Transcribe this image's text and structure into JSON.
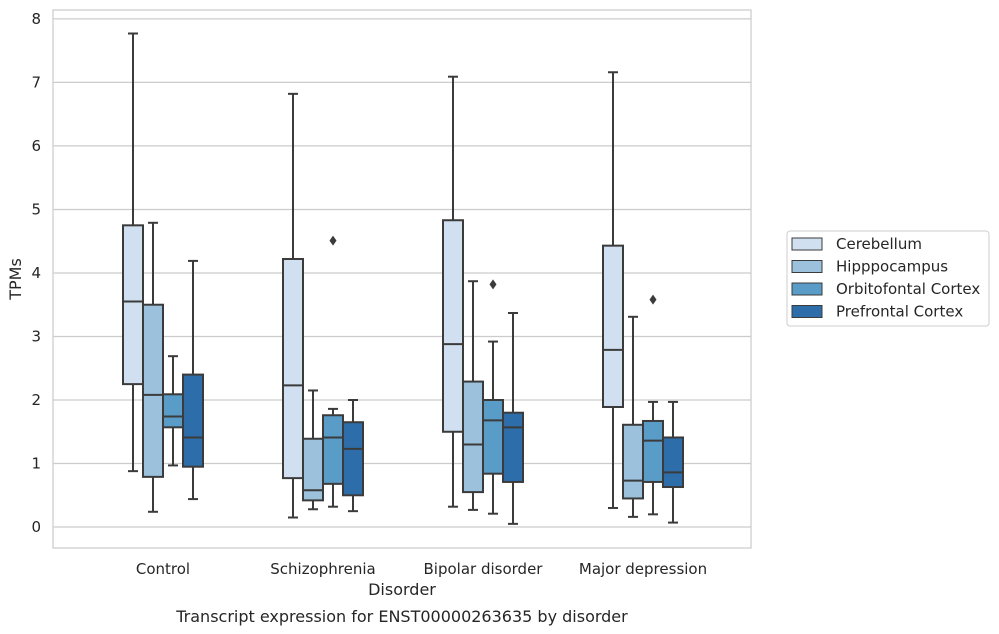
{
  "caption": "Transcript expression for ENST00000263635 by disorder",
  "chart_data": {
    "type": "boxplot",
    "xlabel": "Disorder",
    "ylabel": "TPMs",
    "ylim": [
      -0.33,
      8.14
    ],
    "yticks": [
      0,
      1,
      2,
      3,
      4,
      5,
      6,
      7,
      8
    ],
    "grid": "horizontal",
    "legend_position": "right",
    "categories": [
      "Control",
      "Schizophrenia",
      "Bipolar disorder",
      "Major depression"
    ],
    "series": [
      {
        "name": "Cerebellum",
        "color": "#d1e0f0",
        "boxes": [
          {
            "whislo": 0.88,
            "q1": 2.25,
            "med": 3.55,
            "q3": 4.75,
            "whishi": 7.77,
            "fliers": []
          },
          {
            "whislo": 0.15,
            "q1": 0.77,
            "med": 2.23,
            "q3": 4.22,
            "whishi": 6.82,
            "fliers": []
          },
          {
            "whislo": 0.32,
            "q1": 1.5,
            "med": 2.88,
            "q3": 4.83,
            "whishi": 7.09,
            "fliers": []
          },
          {
            "whislo": 0.3,
            "q1": 1.89,
            "med": 2.79,
            "q3": 4.43,
            "whishi": 7.16,
            "fliers": []
          }
        ]
      },
      {
        "name": "Hipppocampus",
        "color": "#9bc1dc",
        "boxes": [
          {
            "whislo": 0.24,
            "q1": 0.79,
            "med": 2.08,
            "q3": 3.5,
            "whishi": 4.79,
            "fliers": []
          },
          {
            "whislo": 0.28,
            "q1": 0.42,
            "med": 0.58,
            "q3": 1.39,
            "whishi": 2.15,
            "fliers": []
          },
          {
            "whislo": 0.27,
            "q1": 0.55,
            "med": 1.3,
            "q3": 2.29,
            "whishi": 3.87,
            "fliers": []
          },
          {
            "whislo": 0.16,
            "q1": 0.45,
            "med": 0.73,
            "q3": 1.61,
            "whishi": 3.31,
            "fliers": []
          }
        ]
      },
      {
        "name": "Orbitofontal Cortex",
        "color": "#5a9cc8",
        "boxes": [
          {
            "whislo": 0.97,
            "q1": 1.57,
            "med": 1.74,
            "q3": 2.09,
            "whishi": 2.69,
            "fliers": []
          },
          {
            "whislo": 0.32,
            "q1": 0.68,
            "med": 1.41,
            "q3": 1.76,
            "whishi": 1.86,
            "fliers": [
              4.51
            ]
          },
          {
            "whislo": 0.21,
            "q1": 0.84,
            "med": 1.68,
            "q3": 2.0,
            "whishi": 2.92,
            "fliers": [
              3.82
            ]
          },
          {
            "whislo": 0.2,
            "q1": 0.71,
            "med": 1.36,
            "q3": 1.67,
            "whishi": 1.97,
            "fliers": [
              3.58
            ]
          }
        ]
      },
      {
        "name": "Prefrontal Cortex",
        "color": "#2d6eaa",
        "boxes": [
          {
            "whislo": 0.44,
            "q1": 0.95,
            "med": 1.41,
            "q3": 2.4,
            "whishi": 4.19,
            "fliers": []
          },
          {
            "whislo": 0.25,
            "q1": 0.5,
            "med": 1.23,
            "q3": 1.65,
            "whishi": 2.0,
            "fliers": []
          },
          {
            "whislo": 0.05,
            "q1": 0.71,
            "med": 1.57,
            "q3": 1.8,
            "whishi": 3.37,
            "fliers": []
          },
          {
            "whislo": 0.07,
            "q1": 0.63,
            "med": 0.86,
            "q3": 1.41,
            "whishi": 1.97,
            "fliers": []
          }
        ]
      }
    ]
  }
}
